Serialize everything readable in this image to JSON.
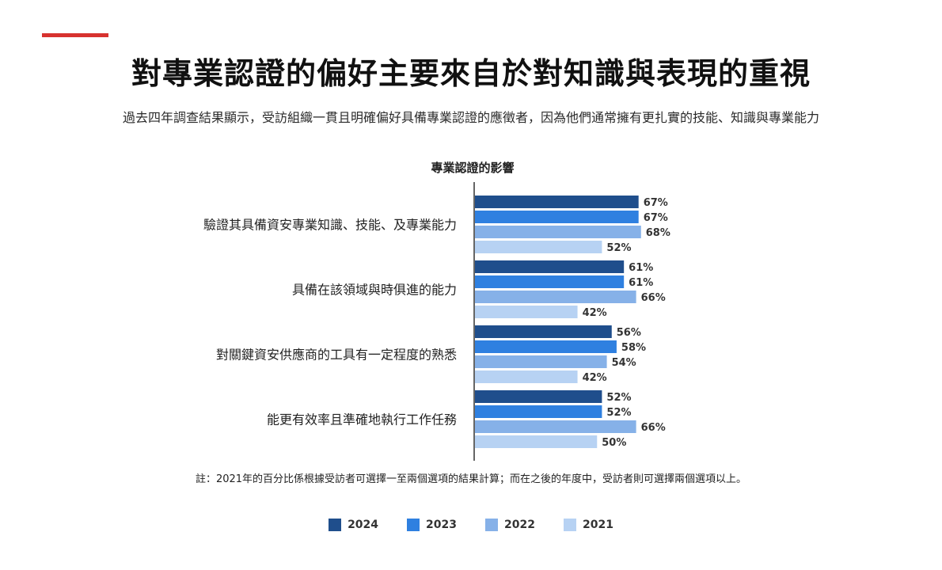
{
  "header": {
    "title": "對專業認證的偏好主要來自於對知識與表現的重視",
    "subtitle": "過去四年調查結果顯示，受訪組織一貫且明確偏好具備專業認證的應徵者，因為他們通常擁有更扎實的技能、知識與專業能力"
  },
  "colors": {
    "accent": "#d7322f",
    "series": [
      "#1f4e8c",
      "#2f80e0",
      "#86b1e8",
      "#b7d2f3"
    ]
  },
  "chart_data": {
    "type": "bar",
    "orientation": "horizontal",
    "title": "專業認證的影響",
    "categories": [
      "驗證其具備資安專業知識、技能、及專業能力",
      "具備在該領域與時俱進的能力",
      "對關鍵資安供應商的工具有一定程度的熟悉",
      "能更有效率且準確地執行工作任務"
    ],
    "series": [
      {
        "name": "2024",
        "values": [
          67,
          61,
          56,
          52
        ]
      },
      {
        "name": "2023",
        "values": [
          67,
          61,
          58,
          52
        ]
      },
      {
        "name": "2022",
        "values": [
          68,
          66,
          54,
          66
        ]
      },
      {
        "name": "2021",
        "values": [
          52,
          42,
          42,
          50
        ]
      }
    ],
    "value_suffix": "%",
    "xlim": [
      0,
      100
    ],
    "grid": false,
    "legend": "bottom"
  },
  "footnote": "註：2021年的百分比係根據受訪者可選擇一至兩個選項的結果計算；而在之後的年度中，受訪者則可選擇兩個選項以上。"
}
